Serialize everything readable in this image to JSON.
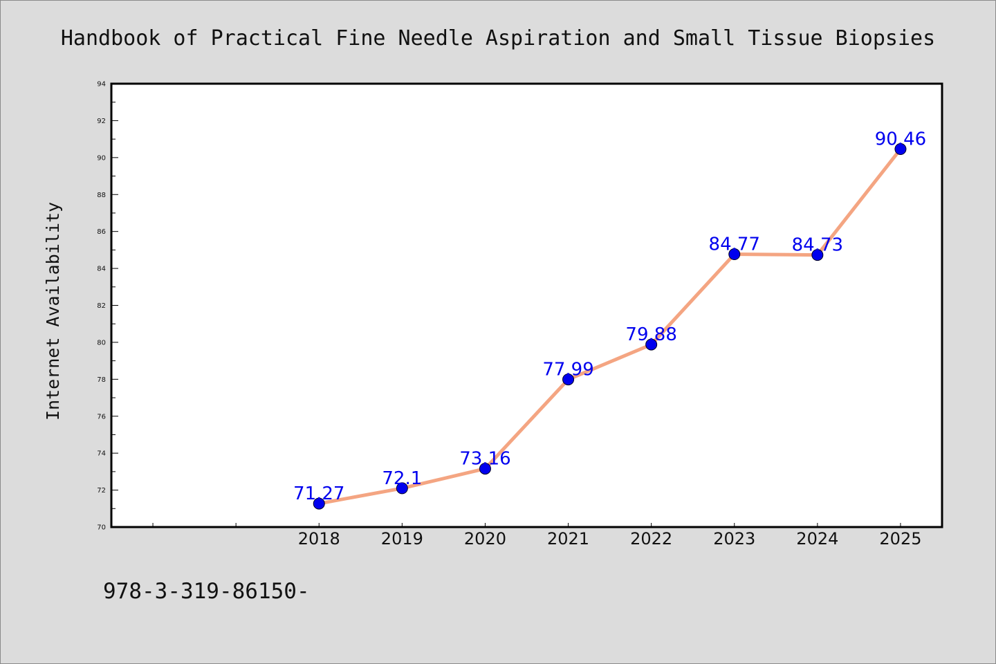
{
  "colors": {
    "background": "#dcdcdc",
    "plot_background": "#ffffff",
    "line": "#f4a582",
    "marker": "#0000ee",
    "data_label": "#0000ee"
  },
  "footer": {
    "text": "978-3-319-86150-"
  },
  "chart_data": {
    "type": "line",
    "title": "Handbook of Practical Fine Needle Aspiration and Small Tissue Biopsies",
    "xlabel": "",
    "ylabel": "Internet Availability",
    "x": [
      "2018",
      "2019",
      "2020",
      "2021",
      "2022",
      "2023",
      "2024",
      "2025"
    ],
    "series": [
      {
        "values": [
          71.27,
          72.1,
          73.16,
          77.99,
          79.88,
          84.77,
          84.73,
          90.46
        ],
        "labels": [
          "71.27",
          "72.1",
          "73.16",
          "77.99",
          "79.88",
          "84.77",
          "84.73",
          "90.46"
        ]
      }
    ],
    "x_categories_total": 10,
    "x_first_data_index": 2,
    "ylim": [
      70,
      94
    ],
    "yticks": [
      "70",
      "72",
      "74",
      "76",
      "78",
      "80",
      "82",
      "84",
      "86",
      "88",
      "90",
      "92",
      "94"
    ],
    "grid": false,
    "legend": "none"
  }
}
